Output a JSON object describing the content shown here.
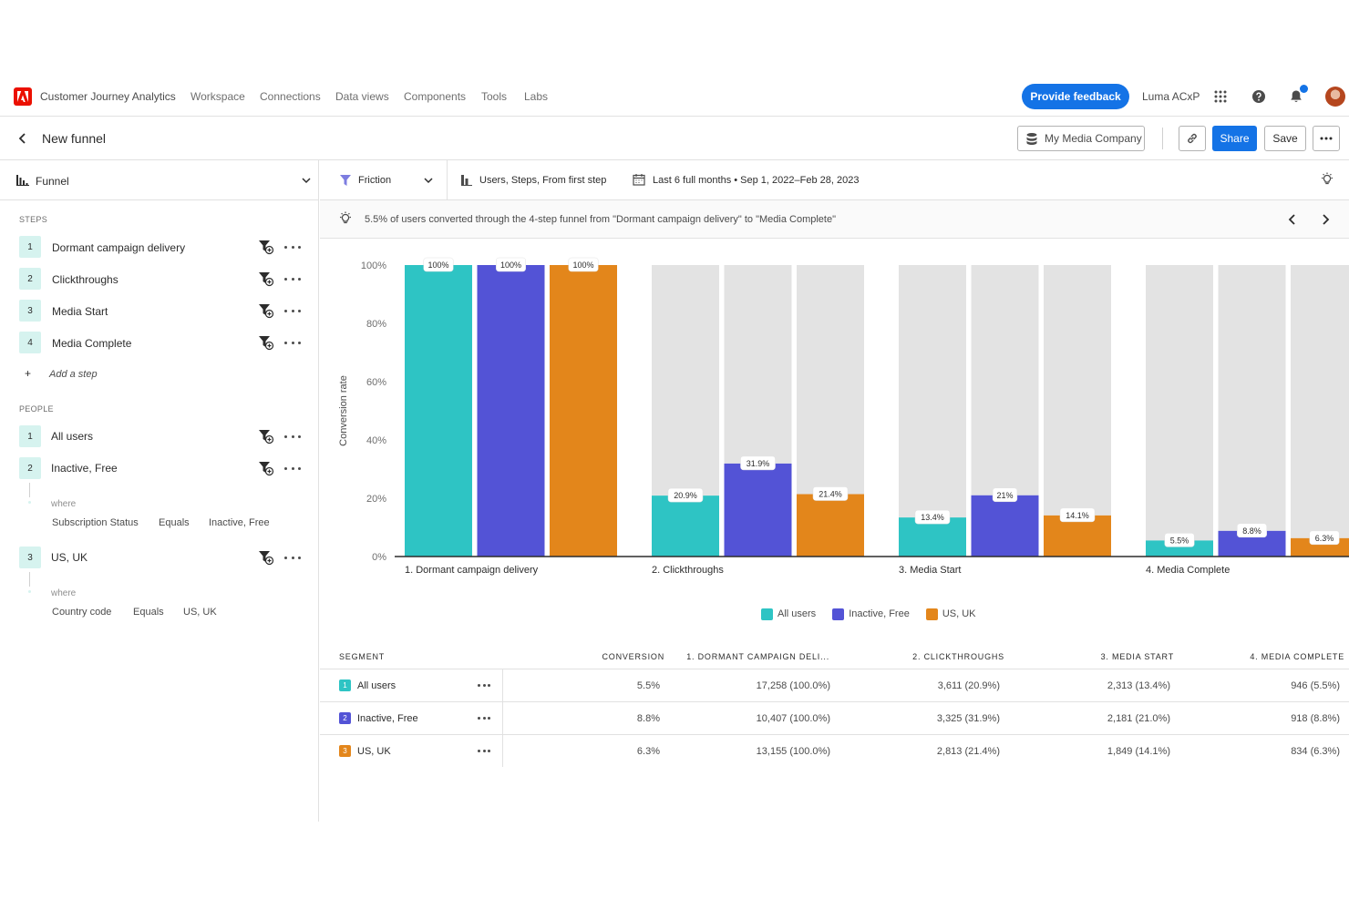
{
  "app": {
    "name": "Customer Journey Analytics",
    "nav": [
      "Workspace",
      "Connections",
      "Data views",
      "Components",
      "Tools",
      "Labs"
    ],
    "feedback_label": "Provide feedback",
    "org_name": "Luma ACxP"
  },
  "title_bar": {
    "page_title": "New funnel",
    "data_view": "My Media Company",
    "share_label": "Share",
    "save_label": "Save"
  },
  "left_panel": {
    "visualization": "Funnel",
    "steps_label": "STEPS",
    "steps": [
      {
        "num": "1",
        "label": "Dormant campaign delivery"
      },
      {
        "num": "2",
        "label": "Clickthroughs"
      },
      {
        "num": "3",
        "label": "Media Start"
      },
      {
        "num": "4",
        "label": "Media Complete"
      }
    ],
    "add_step_label": "Add a step",
    "people_label": "PEOPLE",
    "people": [
      {
        "num": "1",
        "label": "All users"
      },
      {
        "num": "2",
        "label": "Inactive, Free",
        "where": "where",
        "dimension": "Subscription Status",
        "operator": "Equals",
        "value": "Inactive, Free"
      },
      {
        "num": "3",
        "label": "US, UK",
        "where": "where",
        "dimension": "Country code",
        "operator": "Equals",
        "value": "US, UK"
      }
    ]
  },
  "viz_settings": {
    "mode": "Friction",
    "options": "Users, Steps, From first step",
    "date_range": "Last 6 full months • Sep 1, 2022–Feb 28, 2023"
  },
  "insight": "5.5% of users converted through the 4-step funnel from \"Dormant campaign delivery\" to \"Media Complete\"",
  "colors": {
    "all_users": "#2ec4c4",
    "inactive_free": "#5353d6",
    "us_uk": "#e3861b",
    "remainder": "#e3e3e3",
    "accent": "#1473e6"
  },
  "chart_data": {
    "type": "bar",
    "ylabel": "Conversion rate",
    "ylim": [
      0,
      100
    ],
    "y_ticks": [
      "0%",
      "20%",
      "40%",
      "60%",
      "80%",
      "100%"
    ],
    "categories": [
      "1. Dormant campaign delivery",
      "2. Clickthroughs",
      "3. Media Start",
      "4. Media Complete"
    ],
    "series": [
      {
        "name": "All users",
        "values": [
          100,
          20.9,
          13.4,
          5.5
        ],
        "labels": [
          "100%",
          "20.9%",
          "13.4%",
          "5.5%"
        ]
      },
      {
        "name": "Inactive, Free",
        "values": [
          100,
          31.9,
          21,
          8.8
        ],
        "labels": [
          "100%",
          "31.9%",
          "21%",
          "8.8%"
        ]
      },
      {
        "name": "US, UK",
        "values": [
          100,
          21.4,
          14.1,
          6.3
        ],
        "labels": [
          "100%",
          "21.4%",
          "14.1%",
          "6.3%"
        ]
      }
    ]
  },
  "table": {
    "headers": [
      "SEGMENT",
      "CONVERSION",
      "1. DORMANT CAMPAIGN DELI...",
      "2. CLICKTHROUGHS",
      "3. MEDIA START",
      "4. MEDIA COMPLETE"
    ],
    "rows": [
      {
        "num": "1",
        "segment": "All users",
        "conversion": "5.5%",
        "step1": "17,258 (100.0%)",
        "step2": "3,611 (20.9%)",
        "step3": "2,313 (13.4%)",
        "step4": "946 (5.5%)"
      },
      {
        "num": "2",
        "segment": "Inactive, Free",
        "conversion": "8.8%",
        "step1": "10,407 (100.0%)",
        "step2": "3,325 (31.9%)",
        "step3": "2,181 (21.0%)",
        "step4": "918 (8.8%)"
      },
      {
        "num": "3",
        "segment": "US, UK",
        "conversion": "6.3%",
        "step1": "13,155 (100.0%)",
        "step2": "2,813 (21.4%)",
        "step3": "1,849 (14.1%)",
        "step4": "834 (6.3%)"
      }
    ]
  }
}
